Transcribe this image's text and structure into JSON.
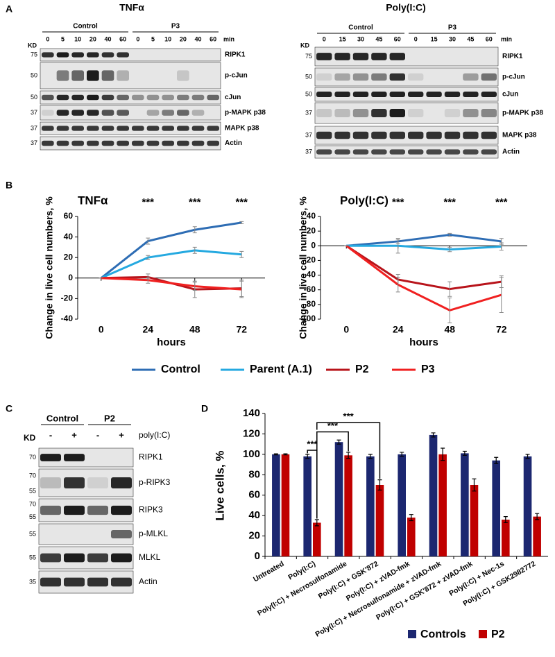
{
  "panel_labels": [
    "A",
    "B",
    "C",
    "D"
  ],
  "blots": [
    {
      "title": "TNFα",
      "kd_label": "KD",
      "groups": [
        "Control",
        "P3"
      ],
      "lane_unit": "min",
      "lanes": [
        "0",
        "5",
        "10",
        "20",
        "40",
        "60",
        "0",
        "5",
        "10",
        "20",
        "40",
        "60"
      ],
      "rows": [
        {
          "protein": "RIPK1",
          "kd": [
            "75"
          ]
        },
        {
          "protein": "p-cJun",
          "kd": [
            "50"
          ]
        },
        {
          "protein": "cJun",
          "kd": [
            "50"
          ]
        },
        {
          "protein": "p-MAPK p38",
          "kd": [
            "37"
          ]
        },
        {
          "protein": "MAPK p38",
          "kd": [
            "37"
          ]
        },
        {
          "protein": "Actin",
          "kd": [
            "37"
          ]
        }
      ]
    },
    {
      "title": "Poly(I:C)",
      "kd_label": "KD",
      "groups": [
        "Control",
        "P3"
      ],
      "lane_unit": "min",
      "lanes": [
        "0",
        "15",
        "30",
        "45",
        "60",
        "0",
        "15",
        "30",
        "45",
        "60"
      ],
      "rows": [
        {
          "protein": "RIPK1",
          "kd": [
            "75"
          ]
        },
        {
          "protein": "p-cJun",
          "kd": [
            "50"
          ]
        },
        {
          "protein": "cJun",
          "kd": [
            "50"
          ]
        },
        {
          "protein": "p-MAPK p38",
          "kd": [
            "37"
          ]
        },
        {
          "protein": "MAPK p38",
          "kd": [
            "37"
          ]
        },
        {
          "protein": "Actin",
          "kd": [
            "37"
          ]
        }
      ]
    },
    {
      "kd_label": "KD",
      "groups": [
        "Control",
        "P2"
      ],
      "treatment": "poly(I:C)",
      "lanes": [
        "-",
        "+",
        "-",
        "+"
      ],
      "rows": [
        {
          "protein": "RIPK1",
          "kd": [
            "70"
          ]
        },
        {
          "protein": "p-RIPK3",
          "kd": [
            "70",
            "55"
          ]
        },
        {
          "protein": "RIPK3",
          "kd": [
            "70",
            "55"
          ]
        },
        {
          "protein": "p-MLKL",
          "kd": [
            "55"
          ]
        },
        {
          "protein": "MLKL",
          "kd": [
            "55"
          ]
        },
        {
          "protein": "Actin",
          "kd": [
            "35"
          ]
        }
      ]
    }
  ],
  "chart_data": [
    {
      "type": "line",
      "title": "TNFα",
      "x_label": "hours",
      "y_label": "Change in live cell numbers, %",
      "annotations": [
        "***",
        "***",
        "***"
      ],
      "x": [
        0,
        24,
        48,
        72
      ],
      "xlim": [
        -12,
        84
      ],
      "xticks": [
        0,
        24,
        48,
        72
      ],
      "ylim": [
        -40,
        60
      ],
      "yticks": [
        -40,
        -20,
        0,
        20,
        40,
        60
      ],
      "grid": false,
      "series": [
        {
          "name": "Control",
          "color": "#2e6db4",
          "values": [
            0,
            36,
            47,
            54
          ],
          "errors": [
            0,
            3,
            3,
            1
          ]
        },
        {
          "name": "Parent (A.1)",
          "color": "#25a9e0",
          "values": [
            0,
            20,
            27,
            23
          ],
          "errors": [
            0,
            2,
            3,
            3
          ]
        },
        {
          "name": "P2",
          "color": "#b8141b",
          "values": [
            0,
            1,
            -11,
            -10
          ],
          "errors": [
            0,
            3,
            8,
            8
          ]
        },
        {
          "name": "P3",
          "color": "#f02020",
          "values": [
            0,
            -2,
            -8,
            -11
          ],
          "errors": [
            0,
            3,
            4,
            8
          ]
        }
      ]
    },
    {
      "type": "line",
      "title": "Poly(I:C)",
      "x_label": "hours",
      "y_label": "Change in live cell numbers, %",
      "annotations": [
        "***",
        "***",
        "***"
      ],
      "x": [
        0,
        24,
        48,
        72
      ],
      "xlim": [
        -12,
        84
      ],
      "xticks": [
        0,
        24,
        48,
        72
      ],
      "ylim": [
        -100,
        40
      ],
      "yticks": [
        -100,
        -80,
        -60,
        -40,
        -20,
        0,
        20,
        40
      ],
      "grid": false,
      "series": [
        {
          "color": "#2e6db4",
          "values": [
            0,
            6,
            15,
            6
          ],
          "errors": [
            0,
            3,
            2,
            4
          ]
        },
        {
          "color": "#25a9e0",
          "values": [
            0,
            0,
            -5,
            -1
          ],
          "errors": [
            0,
            10,
            3,
            5
          ]
        },
        {
          "color": "#b8141b",
          "values": [
            0,
            -46,
            -59,
            -49
          ],
          "errors": [
            0,
            7,
            10,
            8
          ]
        },
        {
          "color": "#f02020",
          "values": [
            0,
            -53,
            -88,
            -67
          ],
          "errors": [
            0,
            10,
            17,
            24
          ]
        }
      ]
    },
    {
      "type": "bar",
      "y_label": "Live cells, %",
      "annotations": [
        "***",
        "***",
        "***"
      ],
      "categories": [
        "Untreated",
        "Poly(I:C)",
        "Poly(I:C) + Necrosulfonamide",
        "Poly(I:C) + GSK'872",
        "Poly(I:C) + zVAD-fmk",
        "Poly(I:C) + Necrosulfonamide + zVAD-fmk",
        "Poly(I:C) + GSK'872 + zVAD-fmk",
        "Poly(I:C) + Nec-1s",
        "Poly(I:C) + GSK2982772"
      ],
      "ylim": [
        0,
        140
      ],
      "yticks": [
        0,
        20,
        40,
        60,
        80,
        100,
        120,
        140
      ],
      "grid": false,
      "legend": "bottom",
      "series": [
        {
          "name": "Controls",
          "color": "#1c2770",
          "values": [
            100,
            98,
            112,
            98,
            100,
            119,
            101,
            94,
            98
          ],
          "errors": [
            0.5,
            2,
            2,
            2,
            2,
            2,
            2,
            3,
            2
          ]
        },
        {
          "name": "P2",
          "color": "#c00000",
          "values": [
            100,
            33,
            99,
            70,
            38,
            100,
            70,
            36,
            39
          ],
          "errors": [
            0.5,
            3,
            3,
            5,
            3,
            6,
            6,
            3,
            3
          ]
        }
      ]
    }
  ]
}
